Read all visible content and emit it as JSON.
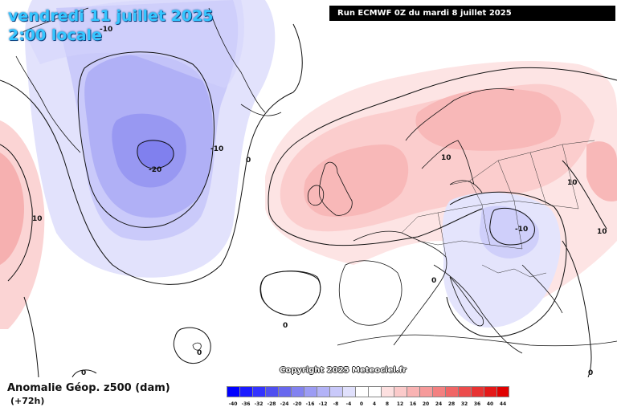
{
  "header": {
    "valid_date": "vendredi 11 juillet 2025",
    "valid_time": "2:00 locale",
    "run_info": "Run ECMWF 0Z du mardi 8 juillet 2025"
  },
  "footer": {
    "field_title": "Anomalie Géop. z500 (dam)",
    "lead_time": "(+72h)",
    "copyright": "Copyright 2025 Meteociel.fr"
  },
  "contour_labels": [
    "-10",
    "-10",
    "-20",
    "0",
    "10",
    "10",
    "10",
    "10",
    "-10",
    "0",
    "0",
    "0",
    "0",
    "0"
  ],
  "legend": {
    "ticks": [
      "-40",
      "-36",
      "-32",
      "-28",
      "-24",
      "-20",
      "-16",
      "-12",
      "-8",
      "-4",
      "0",
      "4",
      "8",
      "12",
      "16",
      "20",
      "24",
      "28",
      "32",
      "36",
      "40",
      "44"
    ],
    "colors": [
      "#0000ff",
      "#1a1aff",
      "#3333ff",
      "#4f4ff0",
      "#6868ee",
      "#8282f0",
      "#9c9cf4",
      "#b3b3f7",
      "#c9c9fa",
      "#e0e0fc",
      "#ffffff",
      "#ffffff",
      "#fde0e0",
      "#fbcaca",
      "#f9b3b3",
      "#f69a9a",
      "#f38080",
      "#f06666",
      "#ec4c4c",
      "#e83232",
      "#e41818",
      "#e00000"
    ]
  }
}
